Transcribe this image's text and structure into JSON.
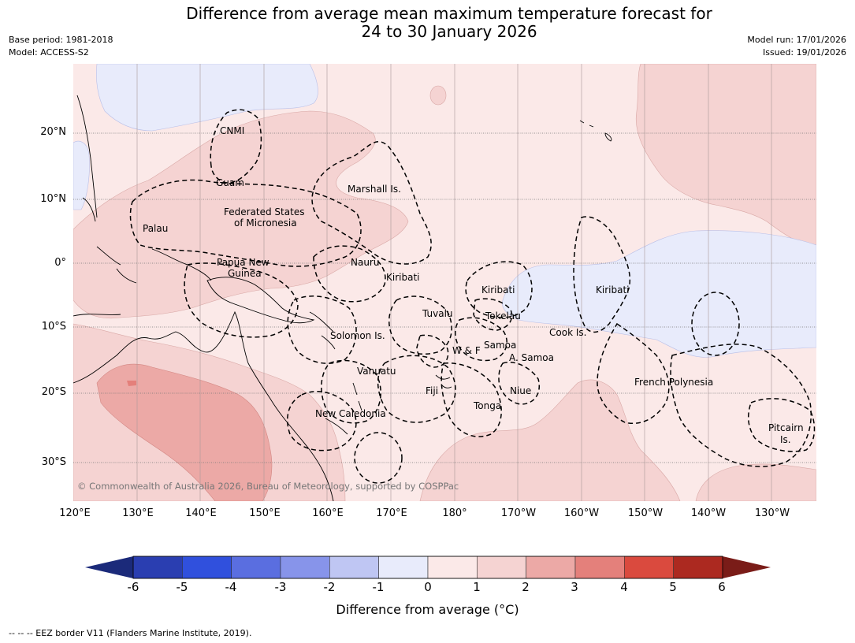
{
  "title_line1": "Difference from average mean maximum temperature forecast for",
  "title_line2": "24 to 30 January 2026",
  "base_period": "Base period: 1981-2018",
  "model": "Model: ACCESS-S2",
  "model_run": "Model run: 17/01/2026",
  "issued": "Issued: 19/01/2026",
  "lat_labels": [
    "20°N",
    "10°N",
    "0°",
    "10°S",
    "20°S",
    "30°S"
  ],
  "lon_labels": [
    "120°E",
    "130°E",
    "140°E",
    "150°E",
    "160°E",
    "170°E",
    "180°",
    "170°W",
    "160°W",
    "150°W",
    "140°W",
    "130°W"
  ],
  "places": {
    "cnmi": "CNMI",
    "guam": "Guam",
    "marshall": "Marshall Is.",
    "fsm1": "Federated States",
    "fsm2": "of Micronesia",
    "palau": "Palau",
    "png1": "Papua New",
    "png2": "Guinea",
    "nauru": "Nauru",
    "kiribati_w": "Kiribati",
    "kiribati_c": "Kiribati",
    "kiribati_e": "Kiribati",
    "tuvalu": "Tuvalu",
    "tokelau": "Tokelau",
    "cook": "Cook Is.",
    "solomon": "Solomon Is.",
    "samoa": "Samoa",
    "wf": "W & F",
    "asamoa": "A. Samoa",
    "vanuatu": "Vanuatu",
    "fiji": "Fiji",
    "niue": "Niue",
    "tonga": "Tonga",
    "frenchpoly": "French Polynesia",
    "newcal": "New Caledonia",
    "pitcairn1": "Pitcairn",
    "pitcairn2": "Is."
  },
  "copyright": "© Commonwealth of Australia 2026, Bureau of Meteorology, supported by COSPPac",
  "colorbar": {
    "ticks": [
      "-6",
      "-5",
      "-4",
      "-3",
      "-2",
      "-1",
      "0",
      "1",
      "2",
      "3",
      "4",
      "5",
      "6"
    ],
    "colors": [
      "#2a3eb1",
      "#3050dd",
      "#5a6ee0",
      "#8794ea",
      "#bfc6f3",
      "#e8ebfb",
      "#fbe9e8",
      "#f5d3d2",
      "#eca9a6",
      "#e4807b",
      "#da4a3e",
      "#ac2920"
    ],
    "low_extend_color": "#1b2a7a",
    "high_extend_color": "#7a1c18",
    "label": "Difference from average (°C)"
  },
  "footnote": "--  --  -- EEZ border V11 (Flanders Marine Institute, 2019)."
}
